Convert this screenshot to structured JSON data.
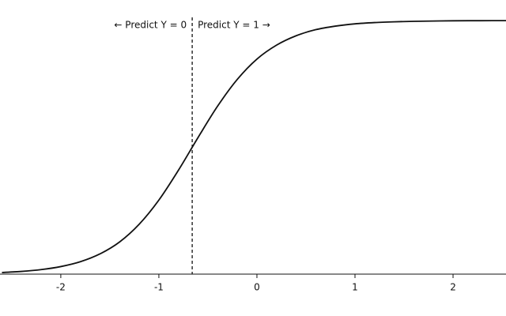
{
  "chart_data": {
    "type": "line",
    "x": [
      -2.6,
      -2.4,
      -2.2,
      -2.0,
      -1.8,
      -1.6,
      -1.4,
      -1.2,
      -1.0,
      -0.8,
      -0.6,
      -0.4,
      -0.2,
      0,
      0.2,
      0.4,
      0.6,
      0.8,
      1.0,
      1.2,
      1.4,
      1.6,
      1.8,
      2.0,
      2.2,
      2.4,
      2.54
    ],
    "values": [
      0.0064,
      0.0107,
      0.0179,
      0.0298,
      0.049,
      0.0799,
      0.127,
      0.197,
      0.292,
      0.41,
      0.539,
      0.663,
      0.768,
      0.848,
      0.903,
      0.94,
      0.964,
      0.978,
      0.987,
      0.992,
      0.995,
      0.997,
      0.998,
      0.999,
      0.9994,
      0.9996,
      0.9997
    ],
    "color": "#111111",
    "xlim": [
      -2.62,
      2.54
    ],
    "ylim": [
      0,
      1
    ],
    "xticks": [
      -2,
      -1,
      0,
      1,
      2
    ],
    "threshold": -0.66,
    "annotations": [
      "← Predict Y = 0",
      "Predict Y = 1 →"
    ]
  }
}
